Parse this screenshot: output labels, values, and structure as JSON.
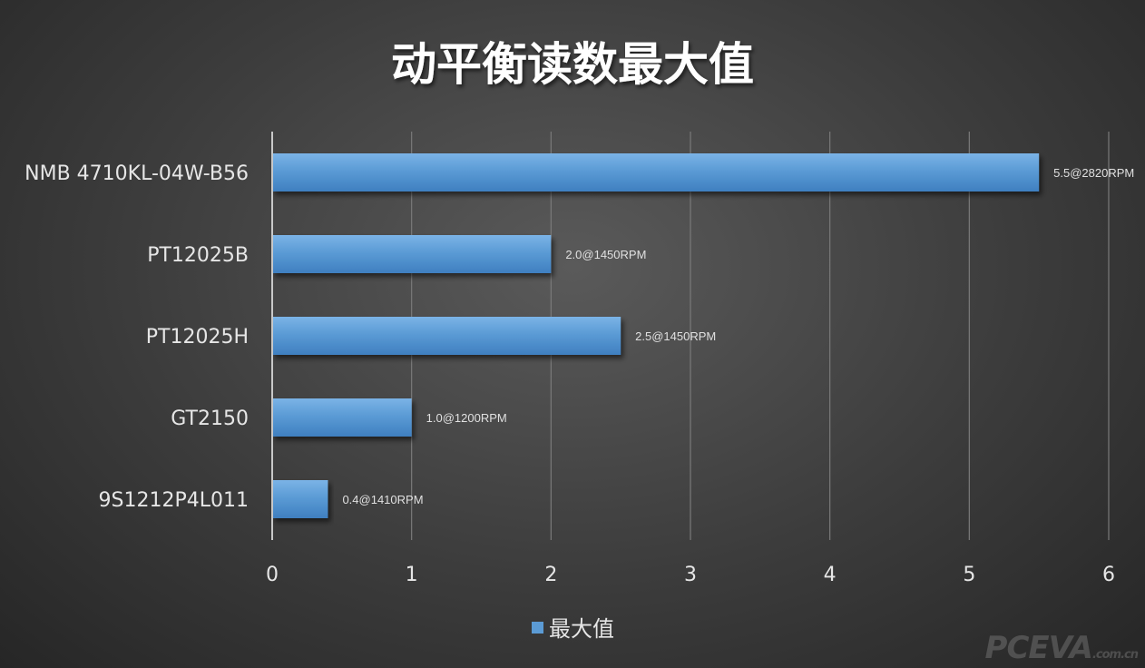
{
  "chart_data": {
    "type": "bar",
    "orientation": "horizontal",
    "title": "动平衡读数最大值",
    "categories": [
      "NMB 4710KL-04W-B56",
      "PT12025B",
      "PT12025H",
      "GT2150",
      "9S1212P4L011"
    ],
    "series": [
      {
        "name": "最大值",
        "values": [
          5.5,
          2.0,
          2.5,
          1.0,
          0.4
        ],
        "labels": [
          "5.5@2820RPM",
          "2.0@1450RPM",
          "2.5@1450RPM",
          "1.0@1200RPM",
          "0.4@1410RPM"
        ],
        "color": "#5b9bd5"
      }
    ],
    "xlim": [
      0,
      6
    ],
    "xticks": [
      0,
      1,
      2,
      3,
      4,
      5,
      6
    ],
    "grid": "vertical",
    "legend": "bottom"
  },
  "watermark": {
    "brand": "PCEVA",
    "suffix": ".com.cn"
  },
  "colors": {
    "bar": "#5b9bd5",
    "text": "#e6e6e6",
    "grid": "#7a7a7a"
  }
}
